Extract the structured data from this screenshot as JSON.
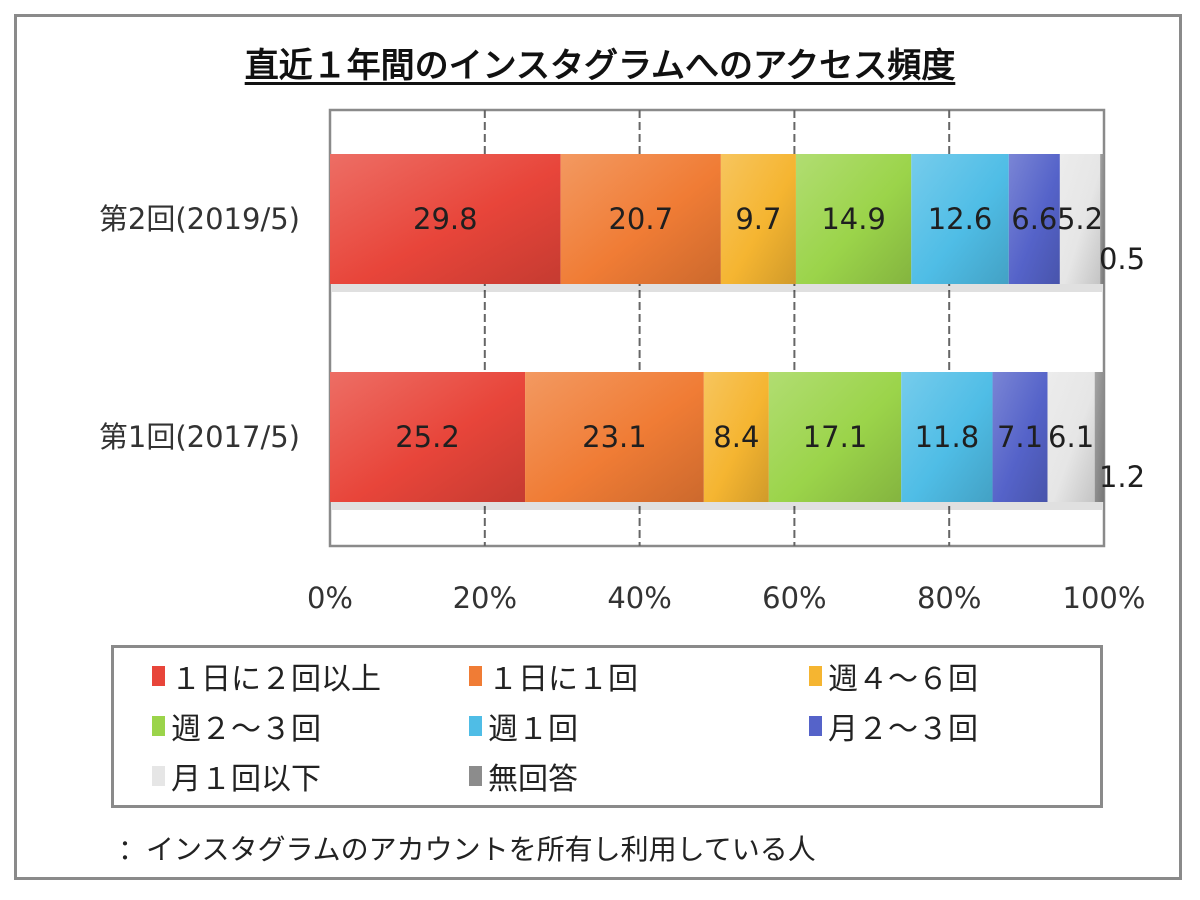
{
  "chart_data": {
    "type": "bar",
    "orientation": "horizontal",
    "stacked": "percent",
    "title": "直近１年間のインスタグラムへのアクセス頻度",
    "xlabel": "",
    "ylabel": "",
    "xlim": [
      0,
      100
    ],
    "x_ticks": [
      "0%",
      "20%",
      "40%",
      "60%",
      "80%",
      "100%"
    ],
    "grid": "vertical dashed",
    "categories": [
      "第2回(2019/5)",
      "第1回(2017/5)"
    ],
    "series": [
      {
        "name": "１日に２回以上",
        "color": "#e8453a",
        "values": [
          29.8,
          25.2
        ]
      },
      {
        "name": "１日に１回",
        "color": "#f07c35",
        "values": [
          20.7,
          23.1
        ]
      },
      {
        "name": "週４～６回",
        "color": "#f5b531",
        "values": [
          9.7,
          8.4
        ]
      },
      {
        "name": "週２～３回",
        "color": "#9bd44a",
        "values": [
          14.9,
          17.1
        ]
      },
      {
        "name": "週１回",
        "color": "#4fbde6",
        "values": [
          12.6,
          11.8
        ]
      },
      {
        "name": "月２～３回",
        "color": "#5563c9",
        "values": [
          6.6,
          7.1
        ]
      },
      {
        "name": "月１回以下",
        "color": "#e6e6e6",
        "values": [
          5.2,
          6.1
        ]
      },
      {
        "name": "無回答",
        "color": "#8c8c8c",
        "values": [
          0.5,
          1.2
        ]
      }
    ],
    "legend_position": "bottom"
  },
  "footnote": "：インスタグラムのアカウントを所有し利用している人"
}
